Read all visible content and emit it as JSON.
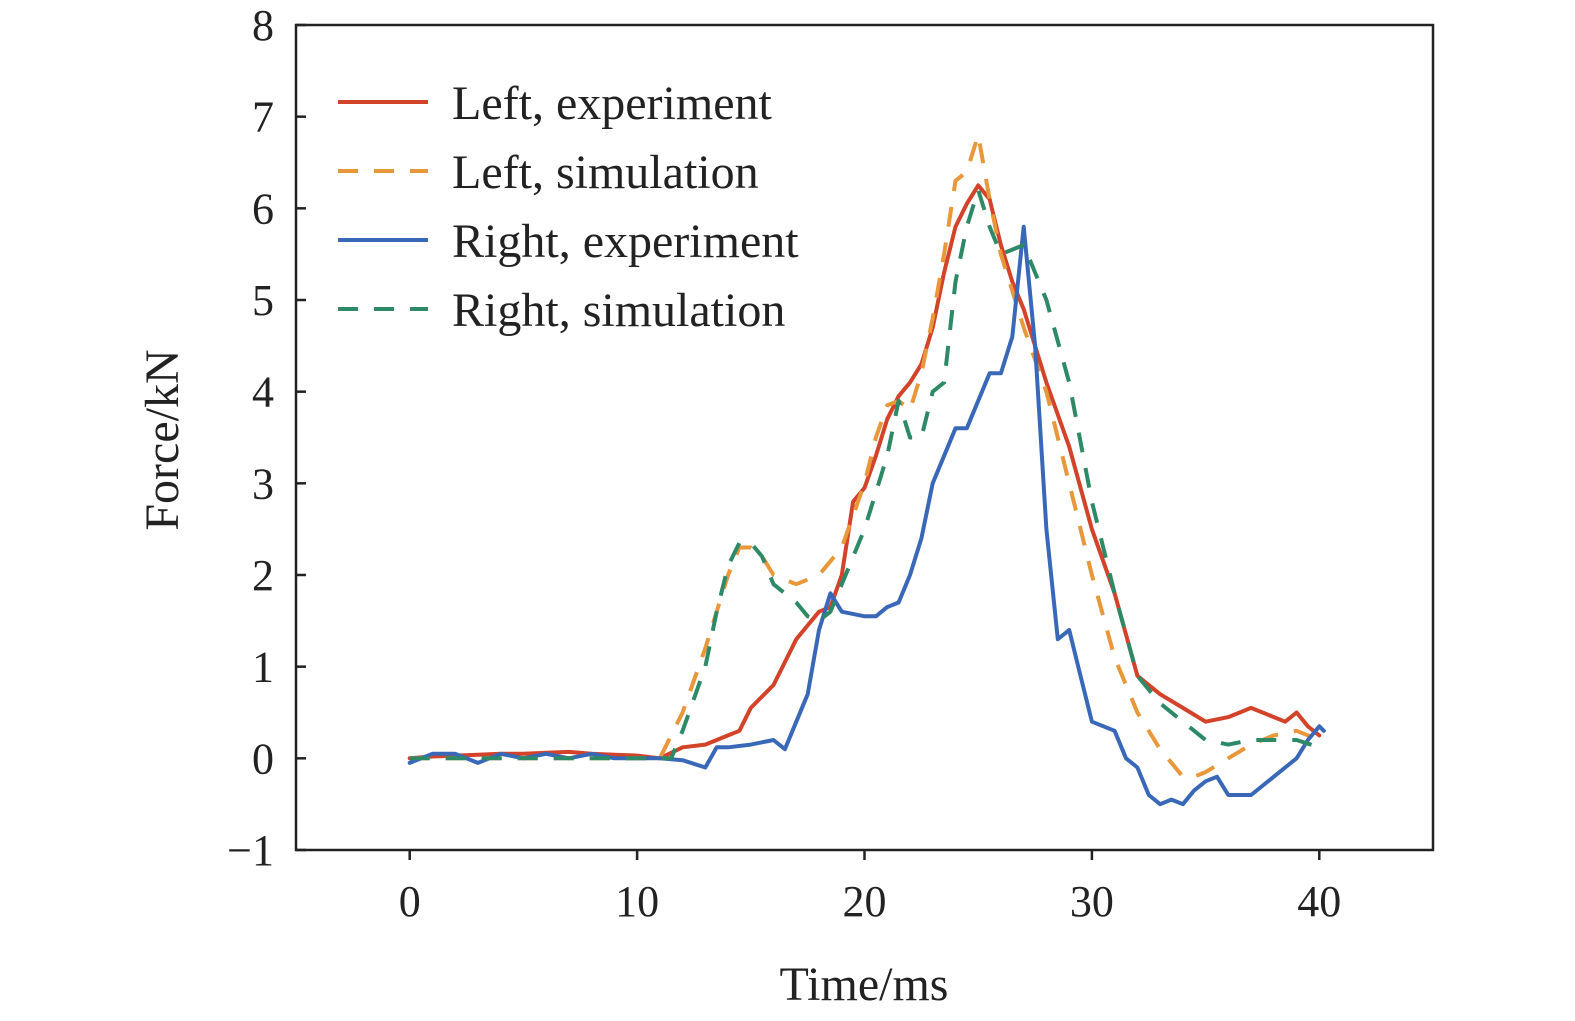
{
  "chart_data": {
    "type": "line",
    "title": "",
    "xlabel": "Time/ms",
    "ylabel": "Force/kN",
    "xlim": [
      -5,
      45
    ],
    "ylim": [
      -1,
      8
    ],
    "xticks": [
      0,
      10,
      20,
      30,
      40
    ],
    "yticks": [
      -1,
      0,
      1,
      2,
      3,
      4,
      5,
      6,
      7,
      8
    ],
    "xtick_labels": [
      "0",
      "10",
      "20",
      "30",
      "40"
    ],
    "ytick_labels": [
      "−1",
      "0",
      "1",
      "2",
      "3",
      "4",
      "5",
      "6",
      "7",
      "8"
    ],
    "grid": false,
    "legend_position": "top-left",
    "series": [
      {
        "name": "Left, experiment",
        "color": "#d2432a",
        "dash": "solid",
        "x": [
          0,
          1,
          2,
          3,
          4,
          5,
          6,
          7,
          8,
          9,
          10,
          11,
          12,
          13,
          14,
          14.5,
          15,
          16,
          16.5,
          17,
          17.5,
          18,
          18.5,
          19,
          19.5,
          20,
          20.5,
          21,
          21.5,
          22,
          22.5,
          23,
          23.5,
          24,
          24.5,
          25,
          25.5,
          26,
          26.5,
          27,
          28,
          29,
          30,
          31,
          32,
          33,
          34,
          35,
          36,
          37,
          38,
          38.5,
          39,
          39.5,
          40
        ],
        "y": [
          0,
          0.02,
          0.03,
          0.04,
          0.05,
          0.05,
          0.06,
          0.07,
          0.05,
          0.04,
          0.03,
          0.0,
          0.12,
          0.15,
          0.25,
          0.3,
          0.55,
          0.8,
          1.05,
          1.3,
          1.45,
          1.6,
          1.65,
          2.0,
          2.8,
          2.95,
          3.3,
          3.7,
          3.95,
          4.1,
          4.3,
          4.7,
          5.3,
          5.8,
          6.05,
          6.25,
          6.1,
          5.6,
          5.2,
          4.9,
          4.1,
          3.4,
          2.5,
          1.8,
          0.9,
          0.7,
          0.55,
          0.4,
          0.45,
          0.55,
          0.45,
          0.4,
          0.5,
          0.35,
          0.25
        ]
      },
      {
        "name": "Left, simulation",
        "color": "#e8973a",
        "dash": "dashed",
        "x": [
          0,
          5,
          10,
          11,
          12,
          13,
          14,
          14.5,
          15,
          15.5,
          16,
          17,
          18,
          19,
          20,
          20.5,
          21,
          21.5,
          22,
          22.5,
          23,
          23.5,
          24,
          24.5,
          25,
          25.5,
          26,
          27,
          28,
          29,
          30,
          31,
          32,
          33,
          34,
          34.5,
          35,
          36,
          37,
          38,
          39,
          40
        ],
        "y": [
          0,
          0,
          0,
          0,
          0.5,
          1.2,
          2.0,
          2.3,
          2.3,
          2.2,
          2.0,
          1.9,
          2.0,
          2.3,
          3.0,
          3.5,
          3.85,
          3.9,
          3.8,
          4.2,
          4.8,
          5.5,
          6.3,
          6.4,
          6.8,
          6.1,
          5.5,
          4.7,
          4.0,
          3.0,
          2.0,
          1.1,
          0.5,
          0.1,
          -0.2,
          -0.2,
          -0.15,
          0.0,
          0.15,
          0.25,
          0.3,
          0.2
        ]
      },
      {
        "name": "Right, experiment",
        "color": "#3a68b8",
        "dash": "solid",
        "x": [
          0,
          1,
          2,
          3,
          4,
          5,
          6,
          7,
          8,
          9,
          10,
          11,
          12,
          13,
          13.5,
          14,
          15,
          16,
          16.5,
          17,
          17.5,
          18,
          18.5,
          19,
          20,
          20.5,
          21,
          21.5,
          22,
          22.5,
          23,
          23.5,
          24,
          24.5,
          25,
          25.5,
          26,
          26.5,
          27,
          27.5,
          28,
          28.5,
          29,
          29.5,
          30,
          31,
          31.5,
          32,
          32.5,
          33,
          33.5,
          34,
          34.5,
          35,
          35.5,
          36,
          37,
          38,
          39,
          39.5,
          40,
          40.2
        ],
        "y": [
          -0.05,
          0.05,
          0.05,
          -0.05,
          0.05,
          0.0,
          0.05,
          0.0,
          0.05,
          0.0,
          0.0,
          0.0,
          -0.02,
          -0.1,
          0.12,
          0.12,
          0.15,
          0.2,
          0.1,
          0.4,
          0.7,
          1.4,
          1.8,
          1.6,
          1.55,
          1.55,
          1.65,
          1.7,
          2.0,
          2.4,
          3.0,
          3.3,
          3.6,
          3.6,
          3.9,
          4.2,
          4.2,
          4.6,
          5.8,
          4.5,
          2.5,
          1.3,
          1.4,
          0.9,
          0.4,
          0.3,
          0.0,
          -0.1,
          -0.4,
          -0.5,
          -0.45,
          -0.5,
          -0.35,
          -0.25,
          -0.2,
          -0.4,
          -0.4,
          -0.2,
          0.0,
          0.2,
          0.35,
          0.3
        ]
      },
      {
        "name": "Right, simulation",
        "color": "#2e8a66",
        "dash": "dashed",
        "x": [
          0,
          5,
          10,
          11.5,
          12,
          13,
          13.5,
          14,
          14.5,
          15,
          15.5,
          16,
          17,
          17.5,
          18,
          18.5,
          19,
          20,
          21,
          21.5,
          22,
          22.5,
          23,
          23.5,
          24,
          24.5,
          25,
          25.5,
          26,
          27,
          28,
          29,
          30,
          31,
          32,
          33,
          34,
          35,
          36,
          37,
          38,
          39,
          40
        ],
        "y": [
          0,
          0,
          0,
          0,
          0.3,
          1.0,
          1.6,
          2.1,
          2.35,
          2.35,
          2.2,
          1.9,
          1.7,
          1.55,
          1.5,
          1.6,
          1.9,
          2.5,
          3.3,
          3.9,
          3.5,
          3.5,
          4.0,
          4.1,
          5.2,
          5.8,
          6.2,
          5.8,
          5.5,
          5.6,
          5.0,
          4.1,
          2.8,
          1.8,
          0.9,
          0.6,
          0.4,
          0.2,
          0.15,
          0.2,
          0.2,
          0.2,
          0.12
        ]
      }
    ]
  }
}
